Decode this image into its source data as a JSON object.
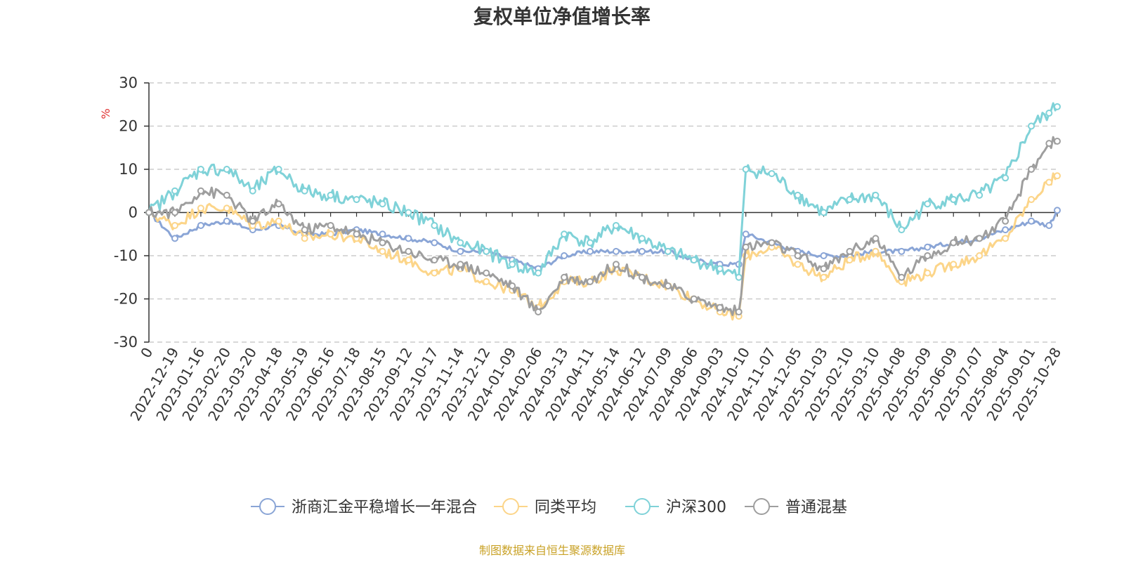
{
  "chart_data": {
    "type": "line",
    "title": "复权单位净值增长率",
    "ylabel": "%",
    "ylim": [
      -30,
      30
    ],
    "yticks": [
      30,
      20,
      10,
      0,
      -10,
      -20,
      -30
    ],
    "grid": true,
    "legend_position": "bottom-center",
    "x_start_label": "0",
    "x_tick_labels": [
      "2022-12-19",
      "2023-01-16",
      "2023-02-20",
      "2023-03-20",
      "2023-04-18",
      "2023-05-19",
      "2023-06-16",
      "2023-07-18",
      "2023-08-15",
      "2023-09-12",
      "2023-10-17",
      "2023-11-14",
      "2023-12-12",
      "2024-01-09",
      "2024-02-06",
      "2024-03-13",
      "2024-04-11",
      "2024-05-14",
      "2024-06-12",
      "2024-07-09",
      "2024-08-06",
      "2024-09-03",
      "2024-10-10",
      "2024-11-07",
      "2024-12-05",
      "2025-01-03",
      "2025-02-10",
      "2025-03-10",
      "2025-04-08",
      "2025-05-09",
      "2025-06-09",
      "2025-07-07",
      "2025-08-04",
      "2025-09-01",
      "2025-10-28"
    ],
    "x": [
      "0",
      "2022-12-19",
      "2023-01-16",
      "2023-02-20",
      "2023-03-20",
      "2023-04-18",
      "2023-05-19",
      "2023-06-16",
      "2023-07-18",
      "2023-08-15",
      "2023-09-12",
      "2023-10-17",
      "2023-11-14",
      "2023-12-12",
      "2024-01-09",
      "2024-02-06",
      "2024-03-13",
      "2024-04-11",
      "2024-05-14",
      "2024-06-12",
      "2024-07-09",
      "2024-08-06",
      "2024-09-03",
      "2024-09-30",
      "2024-10-10",
      "2024-11-07",
      "2024-12-05",
      "2025-01-03",
      "2025-02-10",
      "2025-03-10",
      "2025-04-08",
      "2025-05-09",
      "2025-06-09",
      "2025-07-07",
      "2025-08-04",
      "2025-09-01",
      "2025-10-10",
      "2025-10-28"
    ],
    "series": [
      {
        "name": "浙商汇金平稳增长一年混合",
        "color": "#8aa5d6",
        "values": [
          0,
          -6,
          -3,
          -2,
          -4,
          -3,
          -5,
          -5,
          -4,
          -5,
          -6,
          -7,
          -9,
          -9,
          -11,
          -13,
          -10,
          -9,
          -9,
          -9,
          -9,
          -11,
          -12,
          -12,
          -5,
          -7,
          -9,
          -10,
          -10,
          -9,
          -9,
          -8,
          -7,
          -6,
          -4,
          -2,
          -3,
          0.5
        ]
      },
      {
        "name": "同类平均",
        "color": "#fcd589",
        "values": [
          0,
          -3,
          1,
          1,
          -3,
          -2,
          -6,
          -5,
          -6,
          -9,
          -11,
          -14,
          -13,
          -16,
          -18,
          -22,
          -16,
          -16,
          -13,
          -15,
          -17,
          -20,
          -23,
          -24,
          -10,
          -8,
          -12,
          -15,
          -11,
          -9,
          -16,
          -14,
          -12,
          -10,
          -6,
          3,
          7,
          8.5
        ]
      },
      {
        "name": "沪深300",
        "color": "#7fd2d8",
        "values": [
          0,
          5,
          10,
          10,
          5,
          10,
          5,
          4,
          3,
          2,
          0,
          -3,
          -7,
          -9,
          -12,
          -14,
          -5,
          -7,
          -3,
          -6,
          -9,
          -11,
          -13,
          -15,
          10,
          9,
          4,
          0,
          3,
          4,
          -4,
          2,
          3,
          4,
          8,
          20,
          23,
          24.5
        ]
      },
      {
        "name": "普通混基",
        "color": "#9e9e9e",
        "values": [
          0,
          0,
          5,
          4,
          -2,
          2,
          -4,
          -3,
          -5,
          -7,
          -9,
          -11,
          -12,
          -14,
          -17,
          -23,
          -15,
          -16,
          -12,
          -15,
          -17,
          -20,
          -22,
          -23,
          -8,
          -7,
          -10,
          -13,
          -9,
          -6,
          -15,
          -10,
          -7,
          -6,
          -2,
          10,
          16,
          16.5
        ]
      }
    ],
    "source_note": "制图数据来自恒生聚源数据库"
  }
}
